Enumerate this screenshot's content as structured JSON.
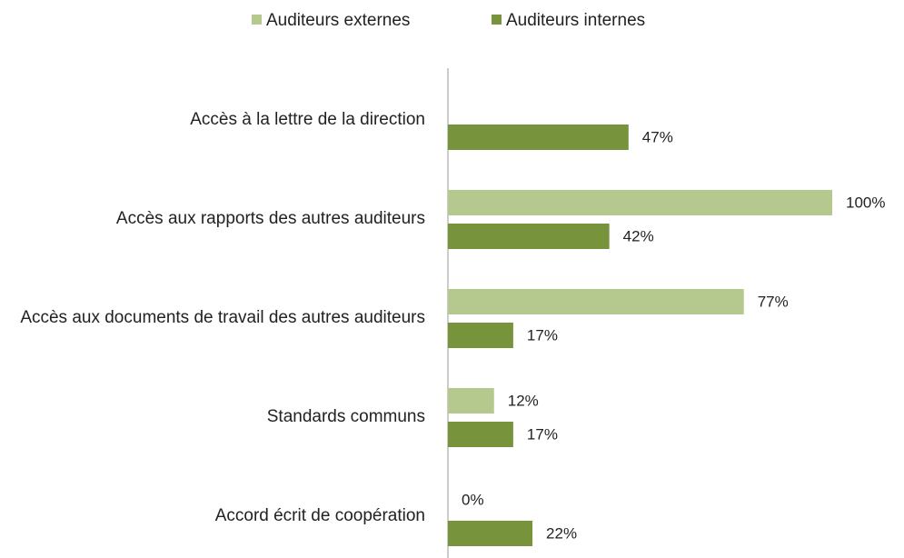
{
  "chart_data": {
    "type": "hbar",
    "categories": [
      "Accès à la lettre de la direction",
      "Accès aux rapports des autres auditeurs",
      "Accès aux documents de travail des autres auditeurs",
      "Standards communs",
      "Accord écrit de coopération"
    ],
    "series": [
      {
        "name": "Auditeurs externes",
        "color": "#b5c98e",
        "values": [
          null,
          100,
          77,
          12,
          0
        ],
        "value_labels": [
          null,
          "100%",
          "77%",
          "12%",
          "0%"
        ]
      },
      {
        "name": "Auditeurs internes",
        "color": "#77933c",
        "values": [
          47,
          42,
          17,
          17,
          22
        ],
        "value_labels": [
          "47%",
          "42%",
          "17%",
          "17%",
          "22%"
        ]
      }
    ],
    "xlim": [
      0,
      100
    ],
    "legend": "top"
  }
}
